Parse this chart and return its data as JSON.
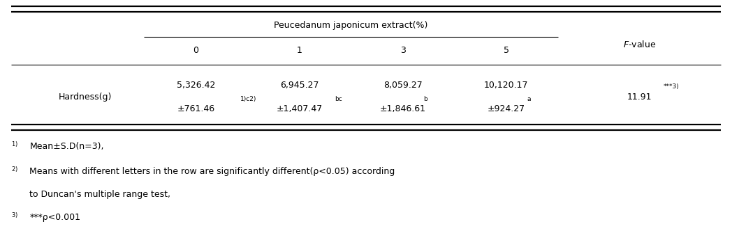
{
  "title_header": "Peucedanum japonicum extract(%)",
  "col_labels": [
    "0",
    "1",
    "3",
    "5"
  ],
  "fvalue_label": "F-value",
  "row_label": "Hardness(g)",
  "mean_values": [
    "5,326.42",
    "6,945.27",
    "8,059.27",
    "10,120.17"
  ],
  "sd_base": [
    "±761.46",
    "±1,407.47",
    "±1,846.61",
    "±924.27"
  ],
  "sd_superscripts": [
    "1)c2)",
    "bc",
    "b",
    "a"
  ],
  "fvalue_base": "11.91",
  "fvalue_sup": "***3)",
  "fn1_text": "Mean±S.D(n=3),",
  "fn2_text": "Means with different letters in the row are significantly different(ρ<0.05) according",
  "fn2b_text": "to Duncan's multiple range test,",
  "fn3_text": "***ρ<0.001",
  "bg_color": "#ffffff",
  "text_color": "#000000",
  "font_size": 9.0,
  "figsize": [
    10.58,
    3.45
  ],
  "dpi": 100
}
